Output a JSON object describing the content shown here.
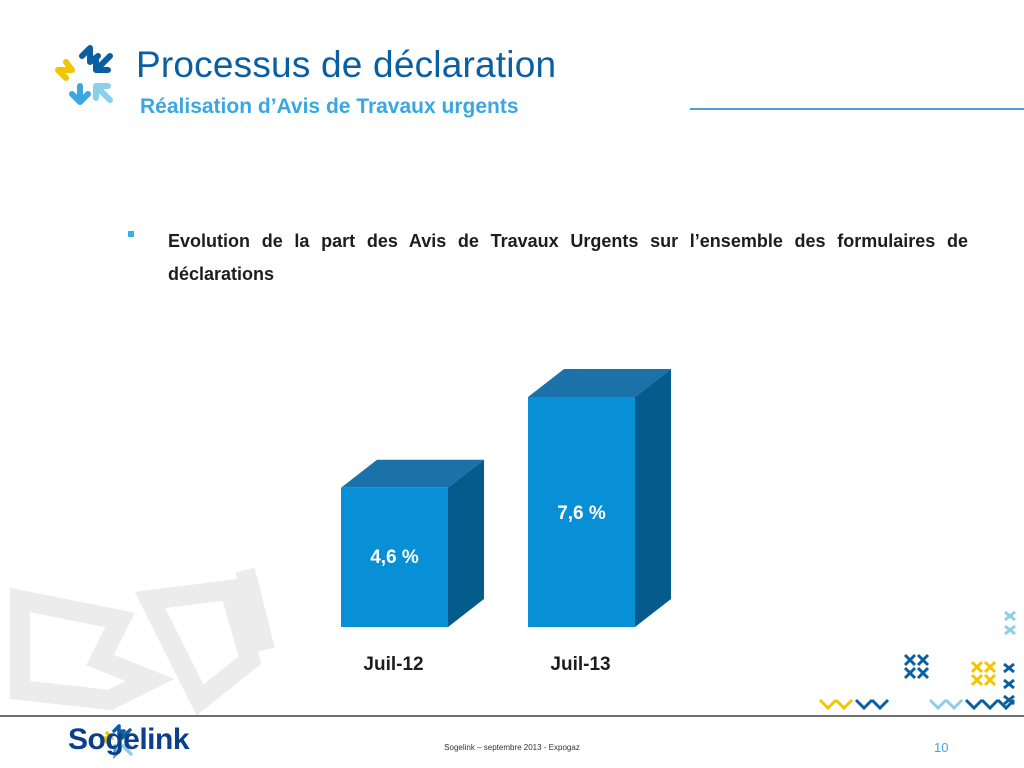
{
  "slide": {
    "title": "Processus de déclaration",
    "subtitle": "Réalisation d’Avis de Travaux urgents",
    "bullet": "Evolution de la part des Avis de Travaux Urgents sur l’ensemble des formulaires de déclarations",
    "page_number": "10"
  },
  "footer": {
    "brand": "Sogelink",
    "text": "Sogelink – septembre 2013 - Expogaz"
  },
  "colors": {
    "bar_front": "#0790d6",
    "bar_top": "#1a72a8",
    "bar_side": "#055b8c",
    "title": "#0a5fa3",
    "accent": "#3aa7e3"
  },
  "chart_data": {
    "type": "bar",
    "categories": [
      "Juil-12",
      "Juil-13"
    ],
    "values": [
      4.6,
      7.6
    ],
    "data_labels": [
      "4,6 %",
      "7,6 %"
    ],
    "style": "3d-column",
    "grid": false
  }
}
